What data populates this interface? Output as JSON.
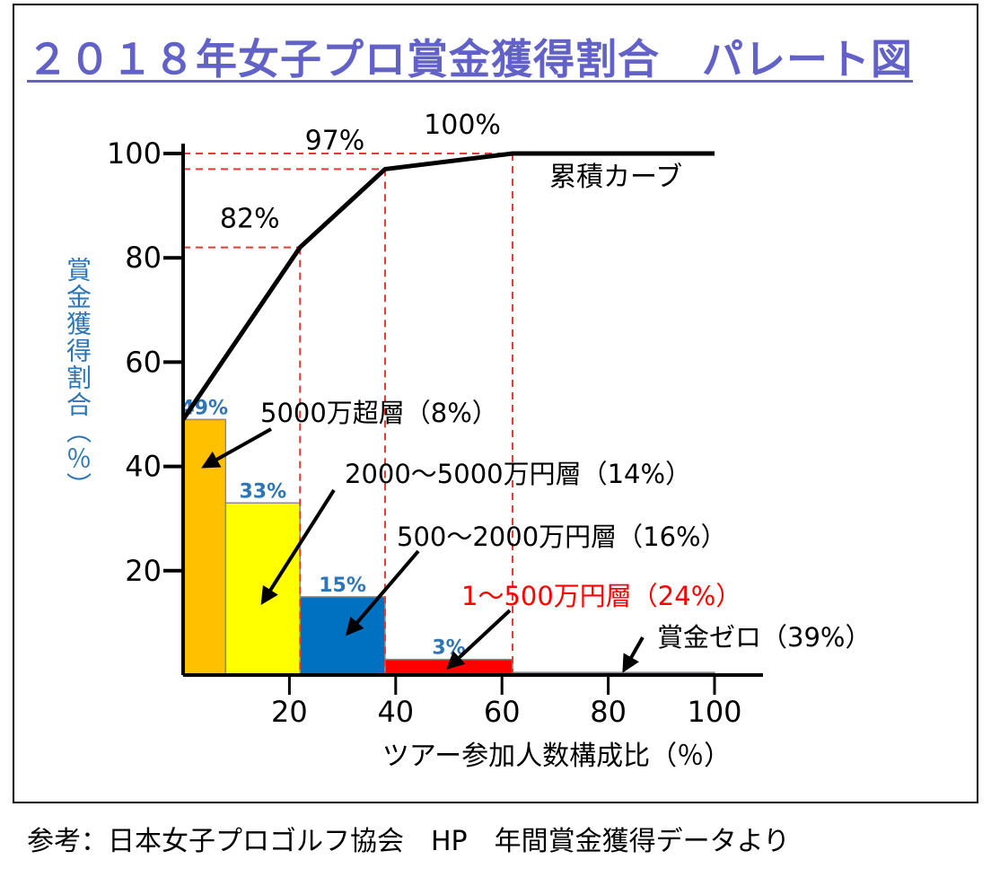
{
  "title": "２０１８年女子プロ賞金獲得割合　パレート図",
  "source_note": "参考：日本女子プロゴルフ協会　HP　年間賞金獲得データより",
  "colors": {
    "title": "#6161c8",
    "ylabel": "#2e75b6",
    "pct_label": "#2e75b6",
    "guide": "#e53935",
    "red_text": "#ff0000"
  },
  "chart_data": {
    "type": "bar",
    "title": "２０１８年女子プロ賞金獲得割合　パレート図",
    "xlabel": "ツアー参加人数構成比（％）",
    "ylabel": "賞金獲得割合（％）",
    "xlim": [
      0,
      100
    ],
    "ylim": [
      0,
      100
    ],
    "x_ticks": [
      "20",
      "40",
      "60",
      "80",
      "100"
    ],
    "y_ticks": [
      "20",
      "40",
      "60",
      "80",
      "100"
    ],
    "grid": false,
    "bars": [
      {
        "group": "5000万超層（8%）",
        "x_start": 0,
        "x_end": 8,
        "value": 49,
        "label": "49%",
        "color": "#ffc000"
      },
      {
        "group": "2000～5000万円層（14%）",
        "x_start": 8,
        "x_end": 22,
        "value": 33,
        "label": "33%",
        "color": "#ffff00"
      },
      {
        "group": "500～2000万円層（16%）",
        "x_start": 22,
        "x_end": 38,
        "value": 15,
        "label": "15%",
        "color": "#0070c0"
      },
      {
        "group": "1～500万円層（24%）",
        "x_start": 38,
        "x_end": 62,
        "value": 3,
        "label": "3%",
        "color": "#ff0000"
      },
      {
        "group": "賞金ゼロ（39%）",
        "x_start": 62,
        "x_end": 100,
        "value": 0.5,
        "label": "",
        "color": "#3f4fa8"
      }
    ],
    "cumulative": {
      "name": "累積カーブ",
      "points": [
        [
          0,
          49
        ],
        [
          22,
          82
        ],
        [
          38,
          97
        ],
        [
          62,
          100
        ],
        [
          100,
          100
        ]
      ],
      "labels": [
        {
          "x": 22,
          "y": 82,
          "text": "82%"
        },
        {
          "x": 38,
          "y": 97,
          "text": "97%"
        },
        {
          "x": 62,
          "y": 100,
          "text": "100%"
        }
      ]
    },
    "guides": [
      {
        "x": 22,
        "y": 82
      },
      {
        "x": 38,
        "y": 97
      },
      {
        "x": 62,
        "y": 100
      }
    ],
    "annotations": [
      {
        "text": "5000万超層（8%）",
        "target_x": 4,
        "target_y": 40,
        "color": "#000000"
      },
      {
        "text": "2000～5000万円層（14%）",
        "target_x": 15,
        "target_y": 14,
        "color": "#000000"
      },
      {
        "text": "500～2000万円層（16%）",
        "target_x": 31,
        "target_y": 8,
        "color": "#000000"
      },
      {
        "text": "1～500万円層（24%）",
        "target_x": 50,
        "target_y": 1.5,
        "color": "#ff0000"
      },
      {
        "text": "賞金ゼロ（39%）",
        "target_x": 83,
        "target_y": 1,
        "color": "#000000"
      }
    ]
  }
}
